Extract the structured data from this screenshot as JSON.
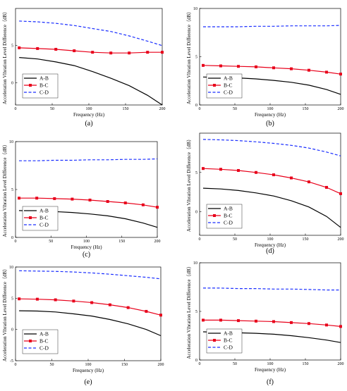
{
  "chart_data": [
    {
      "type": "line",
      "panel_label": "(a)",
      "xlabel": "Frequency (Hz)",
      "ylabel": "Acceleration Vibration Level Difference（dB）",
      "xlim": [
        0,
        200
      ],
      "ylim": [
        -3,
        10
      ],
      "xticks": [
        0,
        50,
        100,
        150,
        200
      ],
      "yticks": [
        0,
        5
      ],
      "grid": false,
      "legend_position": "bottom-left",
      "series": [
        {
          "name": "A-B",
          "color": "#000000",
          "style": "solid",
          "markers": false,
          "x": [
            5,
            30,
            55,
            80,
            105,
            130,
            155,
            180,
            200
          ],
          "y": [
            3.4,
            3.2,
            2.8,
            2.3,
            1.5,
            0.6,
            -0.4,
            -1.7,
            -3.0
          ]
        },
        {
          "name": "B-C",
          "color": "#e8001a",
          "style": "solid",
          "markers": true,
          "x": [
            5,
            30,
            55,
            80,
            105,
            130,
            155,
            180,
            200
          ],
          "y": [
            4.7,
            4.6,
            4.5,
            4.3,
            4.1,
            4.0,
            4.0,
            4.1,
            4.1
          ]
        },
        {
          "name": "C-D",
          "color": "#1a2eff",
          "style": "dashed",
          "markers": false,
          "x": [
            5,
            30,
            55,
            80,
            105,
            130,
            155,
            180,
            200
          ],
          "y": [
            8.3,
            8.2,
            8.0,
            7.7,
            7.3,
            6.9,
            6.3,
            5.6,
            5.0
          ]
        }
      ]
    },
    {
      "type": "line",
      "panel_label": "(b)",
      "xlabel": "Frequency (Hz)",
      "ylabel": "Acceleration Vibration Level Difference（dB）",
      "xlim": [
        0,
        200
      ],
      "ylim": [
        0,
        10
      ],
      "xticks": [
        0,
        50,
        100,
        150,
        200
      ],
      "yticks": [
        0,
        5,
        10
      ],
      "grid": false,
      "legend_position": "bottom-left",
      "series": [
        {
          "name": "A-B",
          "color": "#000000",
          "style": "solid",
          "markers": false,
          "x": [
            5,
            30,
            55,
            80,
            105,
            130,
            155,
            180,
            200
          ],
          "y": [
            2.9,
            2.85,
            2.8,
            2.7,
            2.55,
            2.35,
            2.05,
            1.6,
            1.1
          ]
        },
        {
          "name": "B-C",
          "color": "#e8001a",
          "style": "solid",
          "markers": true,
          "x": [
            5,
            30,
            55,
            80,
            105,
            130,
            155,
            180,
            200
          ],
          "y": [
            4.1,
            4.05,
            4.0,
            3.95,
            3.85,
            3.75,
            3.6,
            3.4,
            3.2
          ]
        },
        {
          "name": "C-D",
          "color": "#1a2eff",
          "style": "dashed",
          "markers": false,
          "x": [
            5,
            30,
            55,
            80,
            105,
            130,
            155,
            180,
            200
          ],
          "y": [
            8.1,
            8.1,
            8.1,
            8.15,
            8.15,
            8.2,
            8.2,
            8.2,
            8.25
          ]
        }
      ]
    },
    {
      "type": "line",
      "panel_label": "(c)",
      "xlabel": "Frequency (Hz)",
      "ylabel": "Acceleration Vibration Level Difference（dB）",
      "xlim": [
        0,
        200
      ],
      "ylim": [
        0,
        10
      ],
      "xticks": [
        0,
        50,
        100,
        150,
        200
      ],
      "yticks": [
        0,
        5,
        10
      ],
      "grid": false,
      "legend_position": "bottom-left",
      "series": [
        {
          "name": "A-B",
          "color": "#000000",
          "style": "solid",
          "markers": false,
          "x": [
            5,
            30,
            55,
            80,
            105,
            130,
            155,
            180,
            200
          ],
          "y": [
            2.8,
            2.75,
            2.7,
            2.6,
            2.45,
            2.25,
            1.95,
            1.5,
            1.05
          ]
        },
        {
          "name": "B-C",
          "color": "#e8001a",
          "style": "solid",
          "markers": true,
          "x": [
            5,
            30,
            55,
            80,
            105,
            130,
            155,
            180,
            200
          ],
          "y": [
            4.1,
            4.1,
            4.05,
            4.0,
            3.9,
            3.75,
            3.6,
            3.4,
            3.15
          ]
        },
        {
          "name": "C-D",
          "color": "#1a2eff",
          "style": "dashed",
          "markers": false,
          "x": [
            5,
            30,
            55,
            80,
            105,
            130,
            155,
            180,
            200
          ],
          "y": [
            8.0,
            8.0,
            8.05,
            8.05,
            8.1,
            8.1,
            8.15,
            8.15,
            8.2
          ]
        }
      ]
    },
    {
      "type": "line",
      "panel_label": "(d)",
      "xlabel": "Frequency (Hz)",
      "ylabel": "Acceleration Vibration Level Difference（dB）",
      "xlim": [
        0,
        200
      ],
      "ylim": [
        -3,
        10
      ],
      "xticks": [
        0,
        50,
        100,
        150,
        200
      ],
      "yticks": [
        0,
        5
      ],
      "grid": false,
      "legend_position": "bottom-left",
      "series": [
        {
          "name": "A-B",
          "color": "#000000",
          "style": "solid",
          "markers": false,
          "x": [
            5,
            30,
            55,
            80,
            105,
            130,
            155,
            180,
            200
          ],
          "y": [
            3.0,
            2.9,
            2.7,
            2.4,
            2.0,
            1.4,
            0.6,
            -0.6,
            -2.0
          ]
        },
        {
          "name": "B-C",
          "color": "#e8001a",
          "style": "solid",
          "markers": true,
          "x": [
            5,
            30,
            55,
            80,
            105,
            130,
            155,
            180,
            200
          ],
          "y": [
            5.5,
            5.4,
            5.25,
            5.0,
            4.7,
            4.3,
            3.8,
            3.1,
            2.3
          ]
        },
        {
          "name": "C-D",
          "color": "#1a2eff",
          "style": "dashed",
          "markers": false,
          "x": [
            5,
            30,
            55,
            80,
            105,
            130,
            155,
            180,
            200
          ],
          "y": [
            9.2,
            9.15,
            9.05,
            8.9,
            8.7,
            8.45,
            8.1,
            7.6,
            7.1
          ]
        }
      ]
    },
    {
      "type": "line",
      "panel_label": "(e)",
      "xlabel": "Frequency (Hz)",
      "ylabel": "Acceleration Vibration Level Difference（dB）",
      "xlim": [
        0,
        200
      ],
      "ylim": [
        -5,
        10
      ],
      "xticks": [
        0,
        50,
        100,
        150,
        200
      ],
      "yticks": [
        -5,
        0,
        5,
        10
      ],
      "grid": false,
      "legend_position": "bottom-left",
      "series": [
        {
          "name": "A-B",
          "color": "#000000",
          "style": "solid",
          "markers": false,
          "x": [
            5,
            30,
            55,
            80,
            105,
            130,
            155,
            180,
            200
          ],
          "y": [
            3.0,
            2.95,
            2.8,
            2.5,
            2.15,
            1.6,
            0.9,
            0.0,
            -1.0
          ]
        },
        {
          "name": "B-C",
          "color": "#e8001a",
          "style": "solid",
          "markers": true,
          "x": [
            5,
            30,
            55,
            80,
            105,
            130,
            155,
            180,
            200
          ],
          "y": [
            4.9,
            4.85,
            4.75,
            4.55,
            4.3,
            3.95,
            3.5,
            2.9,
            2.3
          ]
        },
        {
          "name": "C-D",
          "color": "#1a2eff",
          "style": "dashed",
          "markers": false,
          "x": [
            5,
            30,
            55,
            80,
            105,
            130,
            155,
            180,
            200
          ],
          "y": [
            9.4,
            9.35,
            9.3,
            9.2,
            9.05,
            8.85,
            8.6,
            8.35,
            8.1
          ]
        }
      ]
    },
    {
      "type": "line",
      "panel_label": "(f)",
      "xlabel": "Frequency (Hz)",
      "ylabel": "Acceleration Vibration Level Difference（dB）",
      "xlim": [
        0,
        200
      ],
      "ylim": [
        0,
        10
      ],
      "xticks": [
        0,
        50,
        100,
        150,
        200
      ],
      "yticks": [
        0,
        5,
        10
      ],
      "grid": false,
      "legend_position": "bottom-left",
      "series": [
        {
          "name": "A-B",
          "color": "#000000",
          "style": "solid",
          "markers": false,
          "x": [
            5,
            30,
            55,
            80,
            105,
            130,
            155,
            180,
            200
          ],
          "y": [
            2.9,
            2.85,
            2.8,
            2.75,
            2.65,
            2.5,
            2.3,
            2.05,
            1.8
          ]
        },
        {
          "name": "B-C",
          "color": "#e8001a",
          "style": "solid",
          "markers": true,
          "x": [
            5,
            30,
            55,
            80,
            105,
            130,
            155,
            180,
            200
          ],
          "y": [
            4.1,
            4.1,
            4.05,
            4.0,
            3.95,
            3.85,
            3.75,
            3.6,
            3.45
          ]
        },
        {
          "name": "C-D",
          "color": "#1a2eff",
          "style": "dashed",
          "markers": false,
          "x": [
            5,
            30,
            55,
            80,
            105,
            130,
            155,
            180,
            200
          ],
          "y": [
            7.4,
            7.4,
            7.35,
            7.35,
            7.3,
            7.3,
            7.25,
            7.2,
            7.2
          ]
        }
      ]
    }
  ]
}
